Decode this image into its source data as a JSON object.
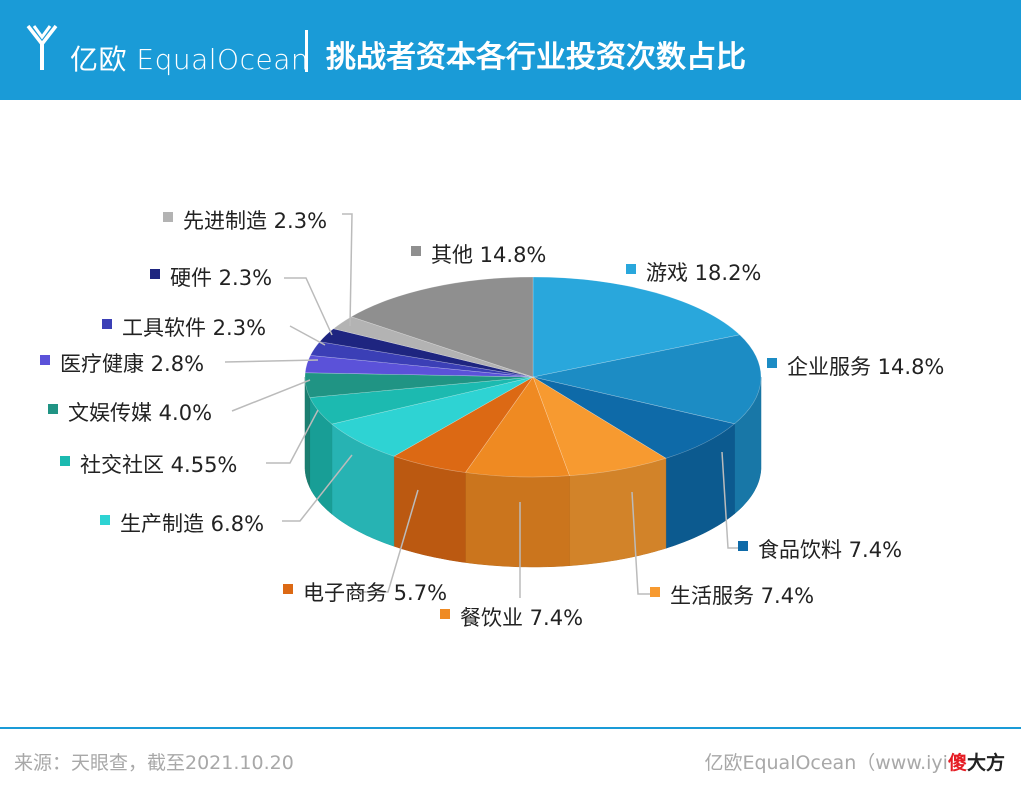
{
  "header": {
    "brand": "亿欧 EqualOcean",
    "title": "挑战者资本各行业投资次数占比"
  },
  "chart_data": {
    "type": "pie",
    "title": "挑战者资本各行业投资次数占比",
    "slices": [
      {
        "label": "游戏",
        "value": 18.2,
        "display": "18.2%",
        "color": "#29a7dc"
      },
      {
        "label": "企业服务",
        "value": 14.8,
        "display": "14.8%",
        "color": "#1c8cc4"
      },
      {
        "label": "食品饮料",
        "value": 7.4,
        "display": "7.4%",
        "color": "#0e6aa8"
      },
      {
        "label": "生活服务",
        "value": 7.4,
        "display": "7.4%",
        "color": "#f79a30"
      },
      {
        "label": "餐饮业",
        "value": 7.4,
        "display": "7.4%",
        "color": "#ef8a22"
      },
      {
        "label": "电子商务",
        "value": 5.7,
        "display": "5.7%",
        "color": "#dc6914"
      },
      {
        "label": "生产制造",
        "value": 6.8,
        "display": "6.8%",
        "color": "#2ed3d3"
      },
      {
        "label": "社交社区",
        "value": 4.55,
        "display": "4.55%",
        "color": "#1cbab0"
      },
      {
        "label": "文娱传媒",
        "value": 4.0,
        "display": "4.0%",
        "color": "#209484"
      },
      {
        "label": "医疗健康",
        "value": 2.8,
        "display": "2.8%",
        "color": "#5b52d9"
      },
      {
        "label": "工具软件",
        "value": 2.3,
        "display": "2.3%",
        "color": "#3b3fb6"
      },
      {
        "label": "硬件",
        "value": 2.3,
        "display": "2.3%",
        "color": "#1e2580"
      },
      {
        "label": "先进制造",
        "value": 2.3,
        "display": "2.3%",
        "color": "#b3b3b3"
      },
      {
        "label": "其他",
        "value": 14.8,
        "display": "14.8%",
        "color": "#8f8f8f"
      }
    ],
    "legend": "labels with leader lines around the pie"
  },
  "footer": {
    "source": "来源：天眼查，截至2021.10.20",
    "credit": "亿欧EqualOcean（www.iyi",
    "watermark_red": "傻",
    "watermark_black": "大方"
  },
  "colors": {
    "header": "#1a9bd7",
    "footer_text": "#a8a8a8"
  }
}
